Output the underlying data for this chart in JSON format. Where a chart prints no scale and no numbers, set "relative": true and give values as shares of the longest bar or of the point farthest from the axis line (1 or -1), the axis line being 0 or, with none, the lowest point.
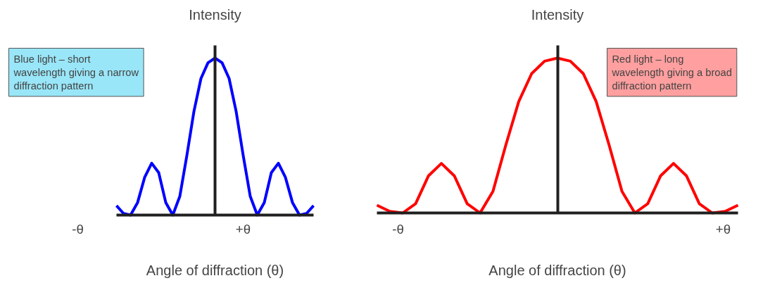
{
  "chart_data": [
    {
      "type": "line",
      "relative": true,
      "ylabel": "Intensity",
      "xlabel": "Angle of diffraction (θ)",
      "categories": [
        null,
        null,
        null,
        null,
        null,
        null,
        null,
        null,
        null,
        null,
        null,
        null,
        null,
        null,
        null,
        null,
        null,
        null,
        null,
        null,
        null,
        null,
        null,
        null,
        null,
        null,
        null,
        null,
        null
      ],
      "series": [
        {
          "color": "#0000ff",
          "values": [
            0.06,
            0.01,
            0,
            0.08,
            0.24,
            0.33,
            0.27,
            0.08,
            0,
            0.12,
            0.38,
            0.66,
            0.87,
            0.97,
            1,
            0.97,
            0.87,
            0.66,
            0.38,
            0.12,
            0,
            0.08,
            0.27,
            0.33,
            0.24,
            0.08,
            0,
            0.01,
            0.06
          ]
        }
      ],
      "annotations": [
        "Blue light – short wavelength giving a narrow diffraction pattern",
        "-θ",
        "+θ"
      ]
    },
    {
      "type": "line",
      "relative": true,
      "ylabel": "Intensity",
      "xlabel": "Angle of diffraction (θ)",
      "categories": [
        null,
        null,
        null,
        null,
        null,
        null,
        null,
        null,
        null,
        null,
        null,
        null,
        null,
        null,
        null,
        null,
        null,
        null,
        null,
        null,
        null,
        null,
        null,
        null,
        null,
        null,
        null,
        null,
        null
      ],
      "series": [
        {
          "color": "#ff0000",
          "values": [
            0.05,
            0.01,
            0,
            0.06,
            0.24,
            0.32,
            0.24,
            0.06,
            0,
            0.14,
            0.44,
            0.72,
            0.9,
            0.98,
            1,
            0.98,
            0.9,
            0.72,
            0.44,
            0.14,
            0,
            0.06,
            0.24,
            0.32,
            0.24,
            0.06,
            0,
            0.01,
            0.05
          ]
        }
      ],
      "annotations": [
        "Red light – long wavelength giving a broad diffraction pattern",
        "-θ",
        "+θ"
      ]
    }
  ]
}
